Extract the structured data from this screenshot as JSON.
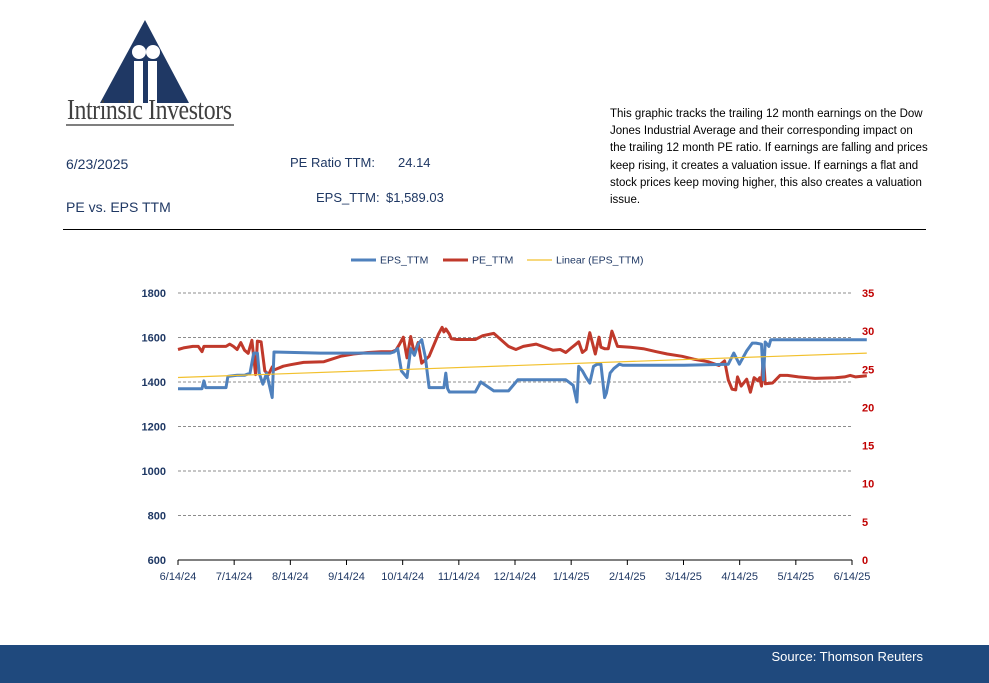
{
  "header": {
    "logo_text": "Intrinsic Investors",
    "date": "6/23/2025",
    "subtitle": "PE vs. EPS TTM",
    "pe_label": "PE Ratio TTM:",
    "pe_value": "24.14",
    "eps_label": "EPS_TTM:",
    "eps_value": "$1,589.03",
    "description": "This graphic tracks the trailing 12 month earnings on the Dow Jones Industrial Average and their corresponding impact on the trailing 12 month PE ratio.  If earnings are falling and prices keep rising, it creates a valuation issue.  If earnings a flat and stock prices keep moving higher, this also creates a valuation issue."
  },
  "footer": {
    "source": "Source: Thomson Reuters"
  },
  "colors": {
    "eps": "#4f81bd",
    "pe": "#c0392b",
    "trend": "#f2c12e",
    "left_axis": "#1f3864",
    "right_axis": "#c00000",
    "footer": "#1f497d"
  },
  "chart_data": {
    "type": "line",
    "legend": [
      "EPS_TTM",
      "PE_TTM",
      "Linear (EPS_TTM)"
    ],
    "legend_position": "top",
    "grid": true,
    "x_ticks": [
      "6/14/24",
      "7/14/24",
      "8/14/24",
      "9/14/24",
      "10/14/24",
      "11/14/24",
      "12/14/24",
      "1/14/25",
      "2/14/25",
      "3/14/25",
      "4/14/25",
      "5/14/25",
      "6/14/25"
    ],
    "ylim_left": [
      600,
      1800
    ],
    "yticks_left": [
      "600",
      "800",
      "1000",
      "1200",
      "1400",
      "1600",
      "1800"
    ],
    "ylim_right": [
      0,
      35
    ],
    "yticks_right": [
      "0",
      "5",
      "10",
      "15",
      "20",
      "25",
      "30",
      "35"
    ],
    "series": [
      {
        "name": "EPS_TTM",
        "axis": "left",
        "x": [
          "2024-06-14",
          "2024-06-27",
          "2024-06-28",
          "2024-06-29",
          "2024-07-10",
          "2024-07-11",
          "2024-07-16",
          "2024-07-20",
          "2024-07-23",
          "2024-07-25",
          "2024-07-27",
          "2024-07-28",
          "2024-07-30",
          "2024-08-01",
          "2024-08-04",
          "2024-08-05",
          "2024-08-30",
          "2024-09-30",
          "2024-10-07",
          "2024-10-09",
          "2024-10-11",
          "2024-10-13",
          "2024-10-16",
          "2024-10-18",
          "2024-10-20",
          "2024-10-22",
          "2024-10-24",
          "2024-10-26",
          "2024-10-28",
          "2024-10-30",
          "2024-11-05",
          "2024-11-06",
          "2024-11-07",
          "2024-11-08",
          "2024-11-22",
          "2024-11-25",
          "2024-12-02",
          "2024-12-10",
          "2024-12-15",
          "2025-01-10",
          "2025-01-14",
          "2025-01-16",
          "2025-01-17",
          "2025-01-19",
          "2025-01-21",
          "2025-01-23",
          "2025-01-25",
          "2025-01-27",
          "2025-01-29",
          "2025-01-31",
          "2025-02-01",
          "2025-02-03",
          "2025-02-05",
          "2025-02-08",
          "2025-02-10",
          "2025-02-14",
          "2025-03-15",
          "2025-04-08",
          "2025-04-11",
          "2025-04-14",
          "2025-04-18",
          "2025-04-21",
          "2025-04-23",
          "2025-04-26",
          "2025-04-27",
          "2025-04-28",
          "2025-04-30",
          "2025-05-01",
          "2025-05-05",
          "2025-06-22"
        ],
        "y": [
          1370,
          1370,
          1405,
          1375,
          1375,
          1425,
          1430,
          1430,
          1440,
          1530,
          1530,
          1440,
          1390,
          1440,
          1330,
          1535,
          1530,
          1530,
          1530,
          1535,
          1550,
          1450,
          1420,
          1550,
          1520,
          1570,
          1590,
          1510,
          1375,
          1375,
          1375,
          1440,
          1370,
          1355,
          1355,
          1400,
          1360,
          1360,
          1410,
          1410,
          1385,
          1310,
          1470,
          1450,
          1420,
          1395,
          1470,
          1480,
          1480,
          1330,
          1350,
          1440,
          1460,
          1480,
          1475,
          1475,
          1475,
          1480,
          1530,
          1480,
          1540,
          1575,
          1575,
          1570,
          1410,
          1580,
          1560,
          1590,
          1590,
          1590
        ]
      },
      {
        "name": "PE_TTM",
        "axis": "right",
        "x": [
          "2024-06-14",
          "2024-06-17",
          "2024-06-22",
          "2024-06-25",
          "2024-06-27",
          "2024-06-28",
          "2024-06-30",
          "2024-07-10",
          "2024-07-12",
          "2024-07-14",
          "2024-07-16",
          "2024-07-18",
          "2024-07-20",
          "2024-07-22",
          "2024-07-24",
          "2024-07-26",
          "2024-07-27",
          "2024-07-29",
          "2024-07-31",
          "2024-08-02",
          "2024-08-04",
          "2024-08-05",
          "2024-08-10",
          "2024-08-14",
          "2024-08-21",
          "2024-09-01",
          "2024-09-10",
          "2024-09-17",
          "2024-09-25",
          "2024-10-02",
          "2024-10-08",
          "2024-10-10",
          "2024-10-12",
          "2024-10-14",
          "2024-10-16",
          "2024-10-18",
          "2024-10-20",
          "2024-10-22",
          "2024-10-24",
          "2024-10-28",
          "2024-11-02",
          "2024-11-04",
          "2024-11-05",
          "2024-11-06",
          "2024-11-08",
          "2024-11-09",
          "2024-11-12",
          "2024-11-22",
          "2024-11-26",
          "2024-12-02",
          "2024-12-10",
          "2024-12-14",
          "2024-12-18",
          "2024-12-25",
          "2025-01-03",
          "2025-01-07",
          "2025-01-10",
          "2025-01-13",
          "2025-01-15",
          "2025-01-17",
          "2025-01-19",
          "2025-01-21",
          "2025-01-23",
          "2025-01-26",
          "2025-01-28",
          "2025-01-29",
          "2025-01-31",
          "2025-02-02",
          "2025-02-04",
          "2025-02-07",
          "2025-02-14",
          "2025-02-21",
          "2025-02-28",
          "2025-03-06",
          "2025-03-14",
          "2025-03-21",
          "2025-03-28",
          "2025-04-03",
          "2025-04-06",
          "2025-04-08",
          "2025-04-10",
          "2025-04-12",
          "2025-04-13",
          "2025-04-15",
          "2025-04-18",
          "2025-04-20",
          "2025-04-22",
          "2025-04-24",
          "2025-04-25",
          "2025-04-26",
          "2025-04-27",
          "2025-04-28",
          "2025-05-02",
          "2025-05-06",
          "2025-05-10",
          "2025-05-16",
          "2025-05-25",
          "2025-06-05",
          "2025-06-10",
          "2025-06-13",
          "2025-06-16",
          "2025-06-22"
        ],
        "y": [
          27.6,
          27.8,
          28.0,
          28.0,
          27.3,
          28.0,
          28.0,
          28.0,
          28.3,
          28.0,
          27.6,
          28.5,
          27.5,
          27.1,
          28.8,
          24.3,
          28.7,
          28.6,
          24.8,
          24.3,
          25.3,
          24.9,
          25.4,
          25.6,
          25.9,
          26.0,
          26.7,
          27.0,
          27.2,
          27.3,
          27.3,
          27.5,
          28.3,
          29.2,
          26.5,
          29.3,
          27.0,
          28.5,
          25.8,
          26.7,
          29.6,
          30.5,
          29.9,
          30.3,
          29.6,
          29.0,
          28.9,
          28.9,
          29.4,
          29.7,
          28.0,
          27.6,
          28.0,
          28.3,
          27.5,
          27.6,
          27.2,
          27.8,
          28.2,
          28.6,
          27.2,
          27.6,
          29.8,
          27.0,
          29.2,
          27.9,
          27.7,
          27.7,
          30.0,
          28.0,
          27.9,
          27.7,
          27.3,
          27.0,
          26.7,
          26.3,
          26.0,
          25.5,
          26.1,
          23.6,
          22.4,
          22.3,
          24.0,
          22.8,
          23.7,
          22.0,
          23.9,
          23.5,
          23.9,
          22.8,
          27.0,
          23.1,
          23.2,
          24.2,
          24.2,
          24.0,
          23.8,
          23.9,
          24.0,
          24.2,
          24.0,
          24.14
        ]
      },
      {
        "name": "Linear (EPS_TTM)",
        "axis": "left",
        "x": [
          "2024-06-14",
          "2025-06-22"
        ],
        "y": [
          1420,
          1530
        ]
      }
    ]
  }
}
